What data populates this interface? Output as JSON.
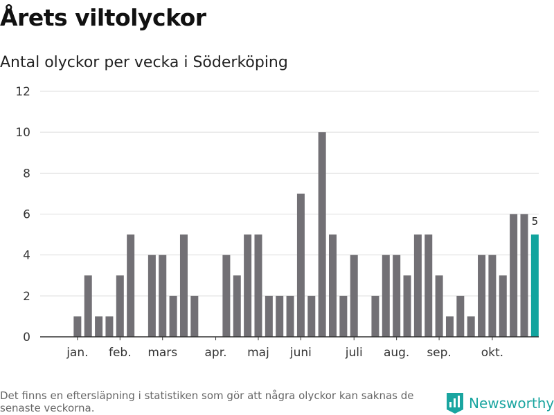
{
  "header": {
    "title": "Årets viltolyckor",
    "subtitle": "Antal olyckor per vecka i Söderköping"
  },
  "footer": {
    "note": "Det finns en eftersläpning i statistiken som gör att några olyckor kan saknas de senaste veckorna.",
    "brand": "Newsworthy"
  },
  "colors": {
    "bar": "#727075",
    "highlight": "#12a49e",
    "grid": "#dddddd",
    "axis": "#333333",
    "brand": "#1aa5a0"
  },
  "chart_data": {
    "type": "bar",
    "title": "Antal olyckor per vecka i Söderköping",
    "xlabel": "",
    "ylabel": "",
    "ylim": [
      0,
      12
    ],
    "yticks": [
      0,
      2,
      4,
      6,
      8,
      10,
      12
    ],
    "grid": true,
    "legend": "none",
    "x_month_labels": [
      {
        "label": "jan.",
        "week": 2
      },
      {
        "label": "feb.",
        "week": 6
      },
      {
        "label": "mars",
        "week": 10
      },
      {
        "label": "apr.",
        "week": 15
      },
      {
        "label": "maj",
        "week": 19
      },
      {
        "label": "juni",
        "week": 23
      },
      {
        "label": "juli",
        "week": 28
      },
      {
        "label": "aug.",
        "week": 32
      },
      {
        "label": "sep.",
        "week": 36
      },
      {
        "label": "okt.",
        "week": 41
      }
    ],
    "weeks": [
      1,
      2,
      3,
      4,
      5,
      6,
      7,
      8,
      9,
      10,
      11,
      12,
      13,
      14,
      15,
      16,
      17,
      18,
      19,
      20,
      21,
      22,
      23,
      24,
      25,
      26,
      27,
      28,
      29,
      30,
      31,
      32,
      33,
      34,
      35,
      36,
      37,
      38,
      39,
      40,
      41,
      42,
      43,
      44,
      45
    ],
    "values": [
      0,
      1,
      3,
      1,
      1,
      3,
      5,
      0,
      4,
      4,
      2,
      5,
      2,
      0,
      0,
      4,
      3,
      5,
      5,
      2,
      2,
      2,
      7,
      2,
      10,
      5,
      2,
      4,
      0,
      2,
      4,
      4,
      3,
      5,
      5,
      3,
      1,
      2,
      1,
      4,
      4,
      3,
      6,
      6,
      5
    ],
    "highlight": {
      "week": 45,
      "value": 5,
      "label": "5"
    }
  }
}
